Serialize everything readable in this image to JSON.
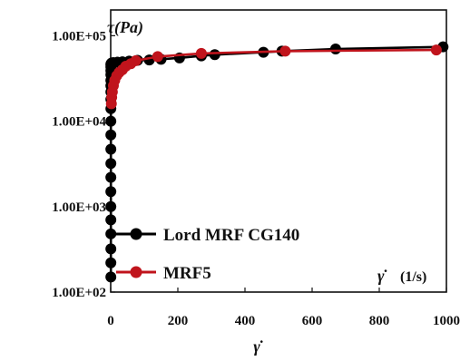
{
  "chart_data": {
    "type": "scatter",
    "title": "",
    "ylabel": "τ(Pa)",
    "xlabel_below": "γ̇",
    "xlabel_inside": "γ̇",
    "xlabel_unit": "(1/s)",
    "xlim": [
      0,
      1000
    ],
    "ylim": [
      100,
      200000
    ],
    "yscale": "log",
    "x_ticks": [
      0,
      200,
      400,
      600,
      800,
      1000
    ],
    "y_ticks": [
      100,
      1000,
      10000,
      100000
    ],
    "x_tick_labels": [
      "0",
      "200",
      "400",
      "600",
      "800",
      "1000"
    ],
    "y_tick_labels": [
      "1.00E+02",
      "1.00E+03",
      "1.00E+04",
      "1.00E+05"
    ],
    "grid": false,
    "legend_position": "bottom-left",
    "series": [
      {
        "name": "Lord MRF CG140",
        "color": "#000000",
        "x": [
          0.5,
          0.5,
          0.5,
          0.5,
          0.5,
          0.5,
          0.5,
          0.5,
          0.5,
          0.5,
          0.5,
          0.5,
          0.5,
          0.5,
          0.5,
          0.5,
          0.5,
          0.5,
          0.5,
          0.5,
          0.5,
          1,
          3,
          8,
          20,
          35,
          55,
          80,
          115,
          150,
          205,
          270,
          310,
          455,
          510,
          670,
          990
        ],
        "y": [
          150,
          220,
          320,
          480,
          700,
          1000,
          1500,
          2200,
          3200,
          4700,
          6900,
          10000,
          14000,
          18000,
          22000,
          26000,
          30000,
          35000,
          39000,
          43000,
          46000,
          47000,
          48000,
          48500,
          49000,
          49500,
          50500,
          51500,
          52000,
          53000,
          55000,
          58000,
          60000,
          64000,
          66000,
          70000,
          74000
        ]
      },
      {
        "name": "MRF5",
        "color": "#c0141c",
        "x": [
          2,
          3,
          5,
          8,
          12,
          18,
          25,
          35,
          45,
          60,
          75,
          140,
          270,
          520,
          970
        ],
        "y": [
          16000,
          19000,
          22000,
          26000,
          30000,
          34000,
          37000,
          40000,
          44000,
          47000,
          51000,
          57000,
          62000,
          66000,
          68000
        ]
      }
    ]
  }
}
